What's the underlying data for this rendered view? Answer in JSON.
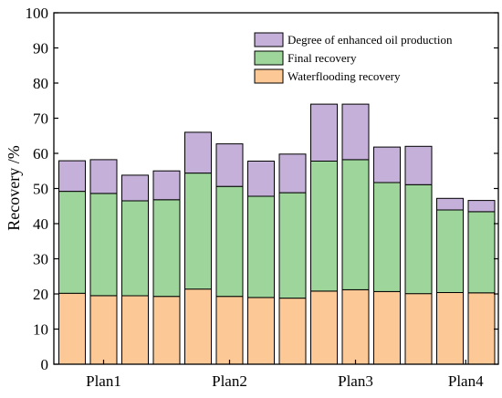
{
  "chart_data": {
    "type": "bar",
    "stacked": true,
    "ylabel": "Recovery /%",
    "ylim": [
      0,
      100
    ],
    "yticks": [
      0,
      10,
      20,
      30,
      40,
      50,
      60,
      70,
      80,
      90,
      100
    ],
    "group_labels": [
      {
        "label": "Plan1",
        "bar_index": 1.0
      },
      {
        "label": "Plan2",
        "bar_index": 5.0
      },
      {
        "label": "Plan3",
        "bar_index": 9.0
      },
      {
        "label": "Plan4",
        "bar_index": 12.5
      }
    ],
    "bar_count": 14,
    "series": [
      {
        "name": "Waterflooding recovery",
        "color": "#fcc896",
        "values": [
          20.2,
          19.5,
          19.5,
          19.3,
          21.4,
          19.3,
          19.0,
          18.8,
          20.8,
          21.2,
          20.7,
          20.1,
          20.4,
          20.3
        ]
      },
      {
        "name": "Final recovery",
        "color": "#9dd59a",
        "values": [
          29.0,
          29.1,
          27.0,
          27.5,
          33.0,
          31.3,
          28.8,
          30.0,
          37.0,
          37.0,
          31.0,
          31.0,
          23.5,
          23.1
        ]
      },
      {
        "name": "Degree of enhanced oil production",
        "color": "#c4b0d9",
        "values": [
          8.7,
          9.6,
          7.3,
          8.2,
          11.6,
          12.1,
          10.0,
          11.0,
          16.2,
          15.8,
          10.1,
          10.9,
          3.3,
          3.2
        ]
      }
    ],
    "legend_order": [
      "Degree of enhanced oil production",
      "Final recovery",
      "Waterflooding recovery"
    ],
    "legend_position": "top-right"
  }
}
